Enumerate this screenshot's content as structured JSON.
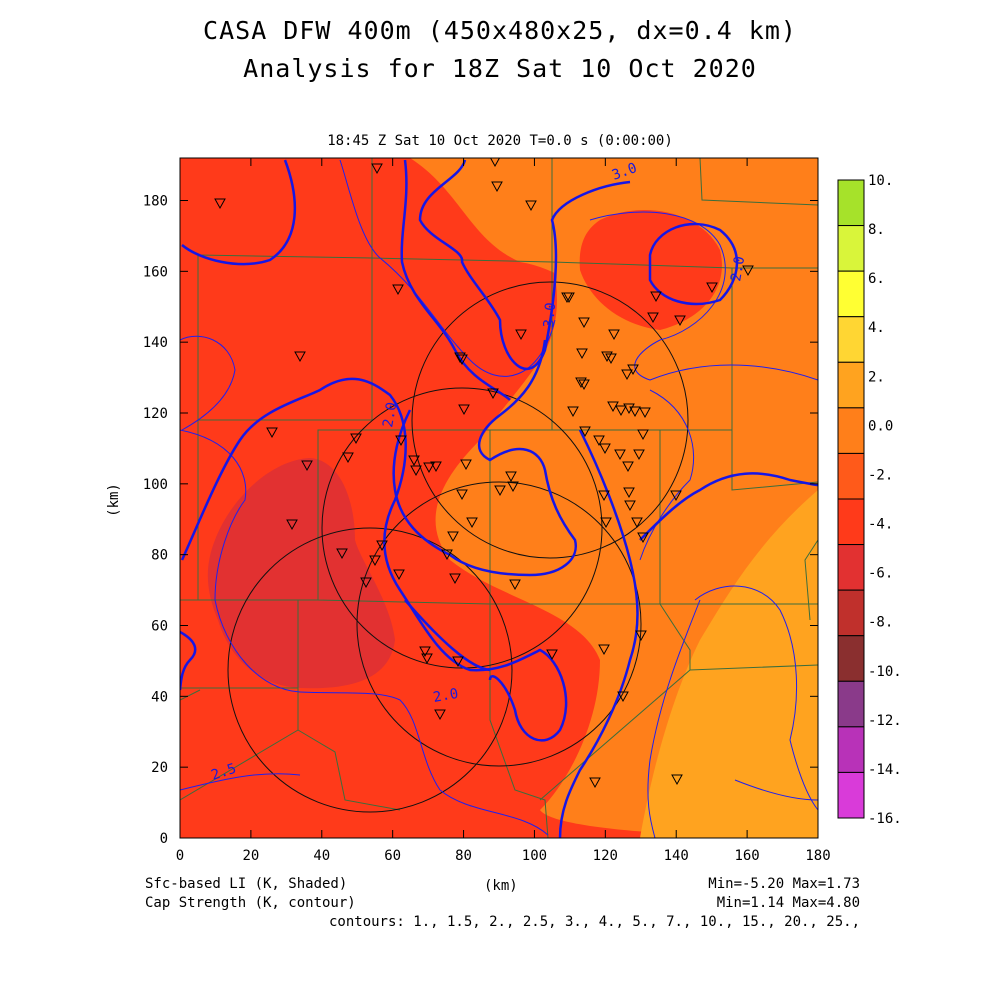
{
  "header": {
    "line1": "CASA DFW 400m (450x480x25, dx=0.4 km)",
    "line2": "Analysis for 18Z Sat 10 Oct 2020"
  },
  "map": {
    "subtitle": "18:45 Z Sat 10 Oct 2020    T=0.0 s (0:00:00)",
    "x_label": "(km)",
    "y_label": "(km)",
    "x_ticks": [
      "0",
      "20",
      "40",
      "60",
      "80",
      "100",
      "120",
      "140",
      "160",
      "180"
    ],
    "y_ticks": [
      "0",
      "20",
      "40",
      "60",
      "80",
      "100",
      "120",
      "140",
      "160",
      "180"
    ],
    "contour_labels": [
      "3.0",
      "2.0",
      "3.0",
      "2.0",
      "2.0",
      "2.5"
    ]
  },
  "colorbar": {
    "labels": [
      "10.",
      "8.",
      "6.",
      "4.",
      "2.",
      "0.0",
      "-2.",
      "-4.",
      "-6.",
      "-8.",
      "-10.",
      "-12.",
      "-14.",
      "-16."
    ],
    "colors": [
      "#a6e22a",
      "#d9f53a",
      "#ffff33",
      "#ffd633",
      "#ffa31f",
      "#ff7f1a",
      "#ff5a1a",
      "#ff3a1a",
      "#e23131",
      "#c0302c",
      "#8a2f2f",
      "#8a3a8a",
      "#b832b8",
      "#d93bd9"
    ]
  },
  "footer": {
    "field1": "Sfc-based LI (K, Shaded)",
    "field2": "Cap Strength (K, contour)",
    "xunit": "(km)",
    "stats1": "Min=-5.20 Max=1.73",
    "stats2": "Min=1.14 Max=4.80",
    "contours": "contours: 1., 1.5, 2., 2.5, 3., 4., 5., 7., 10., 15., 20., 25.,"
  }
}
